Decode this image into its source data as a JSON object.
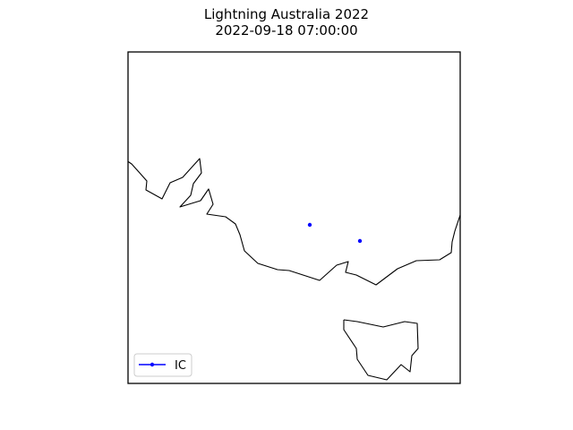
{
  "title": "Lightning Australia 2022",
  "subtitle": "2022-09-18 07:00:00",
  "legend": {
    "placement": "lower-left",
    "entries": [
      {
        "label": "IC",
        "color": "#0000ff"
      }
    ]
  },
  "colors": {
    "coastline": "#000000",
    "frame": "#000000",
    "background": "#ffffff",
    "strike": "#0000ff"
  },
  "strikes": {
    "type": "IC",
    "count": 2
  }
}
